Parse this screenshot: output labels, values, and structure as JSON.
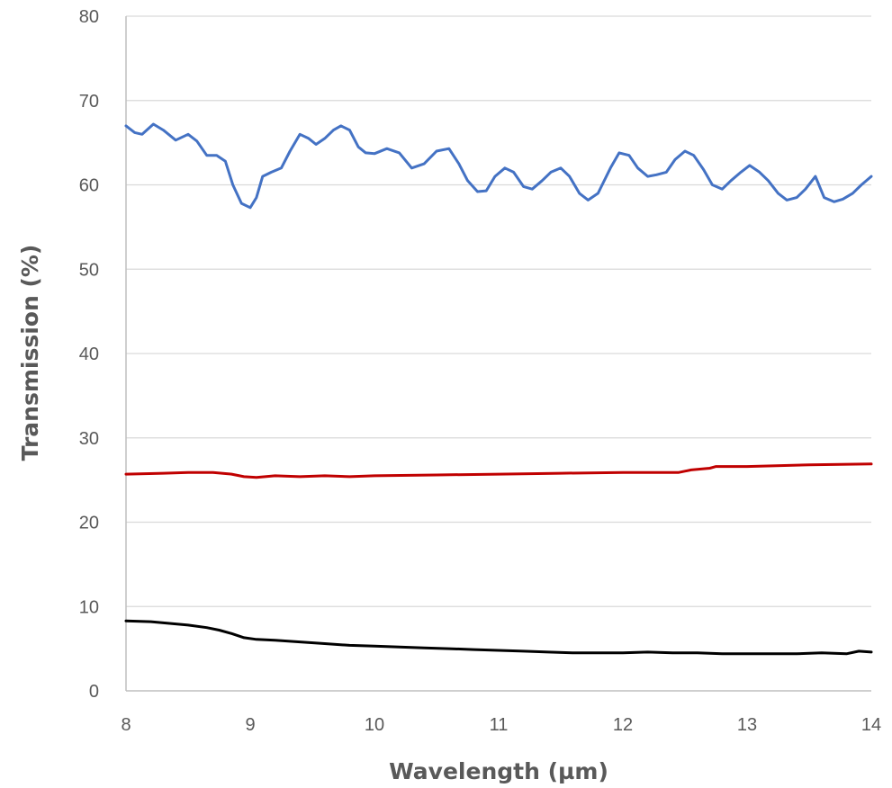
{
  "chart_data": {
    "type": "line",
    "title": "",
    "xlabel": "Wavelength (µm)",
    "ylabel": "Transmission (%)",
    "xlim": [
      8,
      14
    ],
    "ylim": [
      0,
      80
    ],
    "xticks": [
      8,
      9,
      10,
      11,
      12,
      13,
      14
    ],
    "yticks": [
      0,
      10,
      20,
      30,
      40,
      50,
      60,
      70,
      80
    ],
    "grid": "horizontal",
    "legend": "none",
    "series": [
      {
        "color": "#4472c4",
        "x": [
          8.0,
          8.07,
          8.13,
          8.22,
          8.3,
          8.4,
          8.5,
          8.57,
          8.65,
          8.73,
          8.8,
          8.86,
          8.93,
          9.0,
          9.05,
          9.1,
          9.17,
          9.25,
          9.32,
          9.4,
          9.47,
          9.53,
          9.6,
          9.67,
          9.73,
          9.8,
          9.87,
          9.93,
          10.0,
          10.1,
          10.2,
          10.3,
          10.4,
          10.5,
          10.6,
          10.68,
          10.75,
          10.83,
          10.9,
          10.97,
          11.05,
          11.12,
          11.2,
          11.27,
          11.35,
          11.42,
          11.5,
          11.57,
          11.65,
          11.72,
          11.8,
          11.9,
          11.97,
          12.05,
          12.12,
          12.2,
          12.27,
          12.35,
          12.42,
          12.5,
          12.57,
          12.65,
          12.72,
          12.8,
          12.87,
          12.95,
          13.02,
          13.1,
          13.17,
          13.25,
          13.32,
          13.4,
          13.47,
          13.55,
          13.62,
          13.7,
          13.77,
          13.85,
          13.92,
          14.0
        ],
        "values": [
          67.0,
          66.2,
          66.0,
          67.2,
          66.5,
          65.3,
          66.0,
          65.2,
          63.5,
          63.5,
          62.8,
          60.0,
          57.8,
          57.3,
          58.5,
          61.0,
          61.5,
          62.0,
          64.0,
          66.0,
          65.5,
          64.8,
          65.5,
          66.5,
          67.0,
          66.5,
          64.5,
          63.8,
          63.7,
          64.3,
          63.8,
          62.0,
          62.5,
          64.0,
          64.3,
          62.5,
          60.5,
          59.2,
          59.3,
          61.0,
          62.0,
          61.5,
          59.8,
          59.5,
          60.5,
          61.5,
          62.0,
          61.0,
          59.0,
          58.2,
          59.0,
          62.0,
          63.8,
          63.5,
          62.0,
          61.0,
          61.2,
          61.5,
          63.0,
          64.0,
          63.5,
          61.8,
          60.0,
          59.5,
          60.5,
          61.5,
          62.3,
          61.5,
          60.5,
          59.0,
          58.2,
          58.5,
          59.5,
          61.0,
          58.5,
          58.0,
          58.3,
          59.0,
          60.0,
          61.0
        ]
      },
      {
        "color": "#c00000",
        "x": [
          8.0,
          8.3,
          8.5,
          8.7,
          8.85,
          8.95,
          9.05,
          9.2,
          9.4,
          9.6,
          9.8,
          10.0,
          10.5,
          11.0,
          11.5,
          12.0,
          12.45,
          12.55,
          12.7,
          12.75,
          13.0,
          13.5,
          14.0
        ],
        "values": [
          25.7,
          25.8,
          25.9,
          25.9,
          25.7,
          25.4,
          25.3,
          25.5,
          25.4,
          25.5,
          25.4,
          25.5,
          25.6,
          25.7,
          25.8,
          25.9,
          25.9,
          26.2,
          26.4,
          26.6,
          26.6,
          26.8,
          26.9
        ]
      },
      {
        "color": "#000000",
        "x": [
          8.0,
          8.2,
          8.35,
          8.5,
          8.65,
          8.75,
          8.85,
          8.95,
          9.05,
          9.2,
          9.4,
          9.6,
          9.8,
          10.0,
          10.2,
          10.4,
          10.6,
          10.8,
          11.0,
          11.2,
          11.4,
          11.6,
          11.8,
          12.0,
          12.2,
          12.4,
          12.6,
          12.8,
          13.0,
          13.2,
          13.4,
          13.6,
          13.8,
          13.9,
          14.0
        ],
        "values": [
          8.3,
          8.2,
          8.0,
          7.8,
          7.5,
          7.2,
          6.8,
          6.3,
          6.1,
          6.0,
          5.8,
          5.6,
          5.4,
          5.3,
          5.2,
          5.1,
          5.0,
          4.9,
          4.8,
          4.7,
          4.6,
          4.5,
          4.5,
          4.5,
          4.6,
          4.5,
          4.5,
          4.4,
          4.4,
          4.4,
          4.4,
          4.5,
          4.4,
          4.7,
          4.6
        ]
      }
    ]
  }
}
